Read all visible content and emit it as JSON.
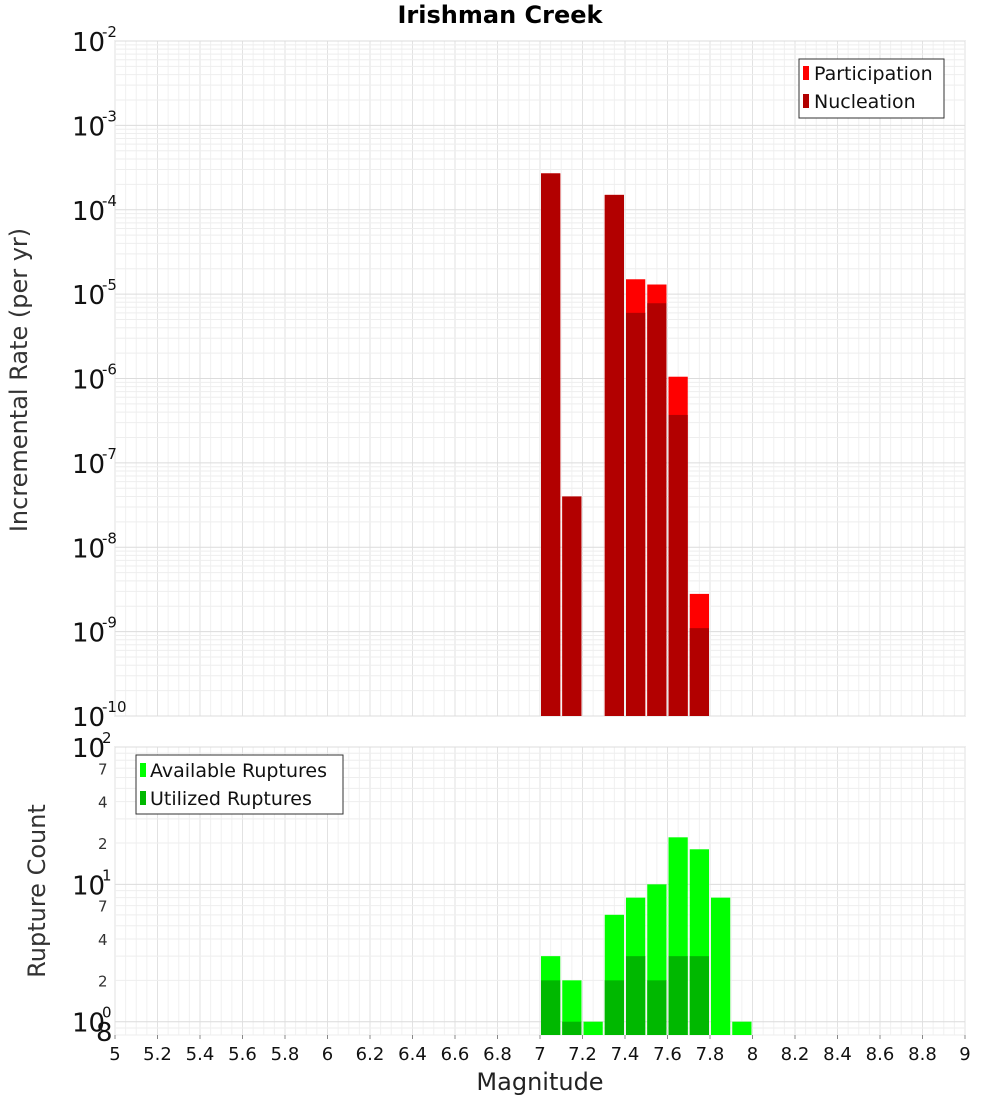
{
  "chart_data": [
    {
      "type": "bar",
      "title": "Irishman Creek",
      "xlabel": "",
      "ylabel": "Incremental Rate (per yr)",
      "yscale": "log",
      "ylim": [
        1e-10,
        0.01
      ],
      "xlim": [
        5,
        9
      ],
      "bar_width": 0.1,
      "grid": true,
      "legend": "top-right",
      "y_ticks": [
        {
          "base": "10",
          "exp": "-2",
          "value": 0.01
        },
        {
          "base": "10",
          "exp": "-3",
          "value": 0.001
        },
        {
          "base": "10",
          "exp": "-4",
          "value": 0.0001
        },
        {
          "base": "10",
          "exp": "-5",
          "value": 1e-05
        },
        {
          "base": "10",
          "exp": "-6",
          "value": 1e-06
        },
        {
          "base": "10",
          "exp": "-7",
          "value": 1e-07
        },
        {
          "base": "10",
          "exp": "-8",
          "value": 1e-08
        },
        {
          "base": "10",
          "exp": "-9",
          "value": 1e-09
        },
        {
          "base": "10",
          "exp": "-10",
          "value": 1e-10
        }
      ],
      "series": [
        {
          "name": "Participation",
          "color": "#ff0000",
          "x": [
            7.05,
            7.15,
            7.35,
            7.45,
            7.55,
            7.65,
            7.75
          ],
          "values": [
            0.00027,
            4e-08,
            0.00015,
            1.5e-05,
            1.3e-05,
            1.05e-06,
            2.8e-09
          ]
        },
        {
          "name": "Nucleation",
          "color": "#b20000",
          "x": [
            7.05,
            7.15,
            7.35,
            7.45,
            7.55,
            7.65,
            7.75
          ],
          "values": [
            0.00027,
            4e-08,
            0.00015,
            6e-06,
            7.8e-06,
            3.7e-07,
            1.1e-09
          ]
        }
      ]
    },
    {
      "type": "bar",
      "title": "",
      "xlabel": "Magnitude",
      "ylabel": "Rupture Count",
      "yscale": "log",
      "ylim": [
        0.8,
        100
      ],
      "xlim": [
        5,
        9
      ],
      "bar_width": 0.1,
      "grid": true,
      "legend": "top-left",
      "x_ticks": [
        "5",
        "5.2",
        "5.4",
        "5.6",
        "5.8",
        "6",
        "6.2",
        "6.4",
        "6.6",
        "6.8",
        "7",
        "7.2",
        "7.4",
        "7.6",
        "7.8",
        "8",
        "8.2",
        "8.4",
        "8.6",
        "8.8",
        "9"
      ],
      "y_major_ticks": [
        {
          "base": "10",
          "exp": "2",
          "value": 100
        },
        {
          "base": "10",
          "exp": "1",
          "value": 10
        },
        {
          "base": "10",
          "exp": "0",
          "value": 1
        }
      ],
      "y_minor_ticks": [
        {
          "label": "7",
          "value": 70
        },
        {
          "label": "4",
          "value": 40
        },
        {
          "label": "2",
          "value": 20
        },
        {
          "label": "7",
          "value": 7
        },
        {
          "label": "4",
          "value": 4
        },
        {
          "label": "2",
          "value": 2
        },
        {
          "label": "8",
          "value": 0.8
        }
      ],
      "series": [
        {
          "name": "Available Ruptures",
          "color": "#00ff00",
          "x": [
            7.05,
            7.15,
            7.25,
            7.35,
            7.45,
            7.55,
            7.65,
            7.75,
            7.85,
            7.95
          ],
          "values": [
            3,
            2,
            1,
            6,
            8,
            10,
            22,
            18,
            8,
            1
          ]
        },
        {
          "name": "Utilized Ruptures",
          "color": "#00b800",
          "x": [
            7.05,
            7.15,
            7.25,
            7.35,
            7.45,
            7.55,
            7.65,
            7.75,
            7.85,
            7.95
          ],
          "values": [
            2,
            1,
            0,
            2,
            3,
            2,
            3,
            3,
            0,
            0
          ]
        }
      ]
    }
  ]
}
